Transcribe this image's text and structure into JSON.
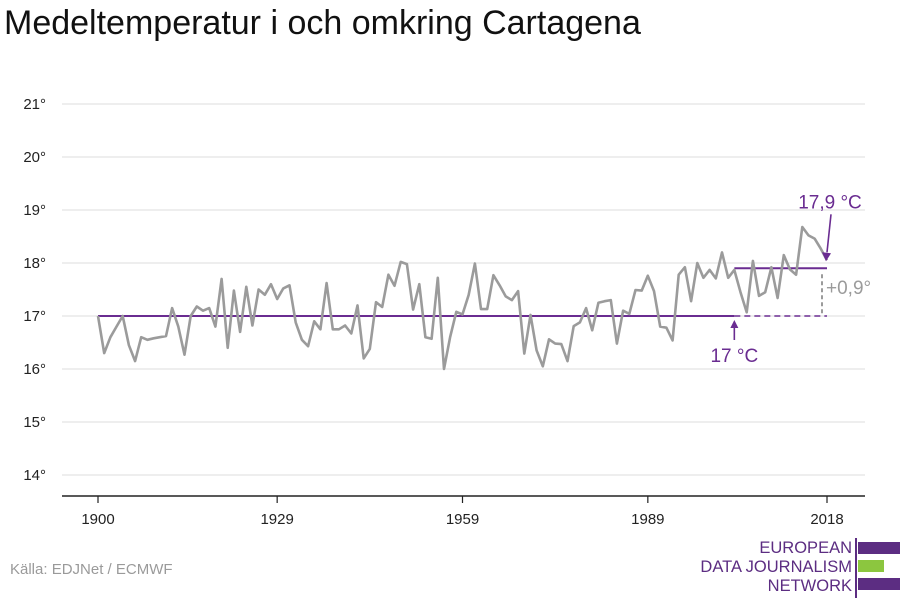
{
  "title": "Medeltemperatur i och omkring Cartagena",
  "source": "Källa: EDJNet / ECMWF",
  "logo": {
    "lines": [
      "EUROPEAN",
      "DATA JOURNALISM",
      "NETWORK"
    ],
    "colors": {
      "purple": "#5c2d82",
      "green": "#8cc63f"
    }
  },
  "colors": {
    "series": "#9b9b9b",
    "accent": "#6a2c91",
    "diff": "#9b9b9b",
    "grid": "#dddddd",
    "axis": "#222222"
  },
  "chart_data": {
    "type": "line",
    "title": "Medeltemperatur i och omkring Cartagena",
    "xlabel": "",
    "ylabel": "",
    "xlim": [
      1900,
      2018
    ],
    "ylim": [
      14,
      21
    ],
    "xticks": [
      1900,
      1929,
      1959,
      1989,
      2018
    ],
    "xtick_labels": [
      "1900",
      "1929",
      "1959",
      "1989",
      "2018"
    ],
    "yticks": [
      14,
      15,
      16,
      17,
      18,
      19,
      20,
      21
    ],
    "ytick_labels": [
      "14°",
      "15°",
      "16°",
      "17°",
      "18°",
      "19°",
      "20°",
      "21°"
    ],
    "grid": true,
    "series": [
      {
        "x": [
          1900,
          1901,
          1902,
          1903,
          1904,
          1905,
          1906,
          1907,
          1908,
          1909,
          1910,
          1911,
          1912,
          1913,
          1914,
          1915,
          1916,
          1917,
          1918,
          1919,
          1920,
          1921,
          1922,
          1923,
          1924,
          1925,
          1926,
          1927,
          1928,
          1929,
          1930,
          1931,
          1932,
          1933,
          1934,
          1935,
          1936,
          1937,
          1938,
          1939,
          1940,
          1941,
          1942,
          1943,
          1944,
          1945,
          1946,
          1947,
          1948,
          1949,
          1950,
          1951,
          1952,
          1953,
          1954,
          1955,
          1956,
          1957,
          1958,
          1959,
          1960,
          1961,
          1962,
          1963,
          1964,
          1965,
          1966,
          1967,
          1968,
          1969,
          1970,
          1971,
          1972,
          1973,
          1974,
          1975,
          1976,
          1977,
          1978,
          1979,
          1980,
          1981,
          1982,
          1983,
          1984,
          1985,
          1986,
          1987,
          1988,
          1989,
          1990,
          1991,
          1992,
          1993,
          1994,
          1995,
          1996,
          1997,
          1998,
          1999,
          2000,
          2001,
          2002,
          2003,
          2004,
          2005,
          2006,
          2007,
          2008,
          2009,
          2010,
          2011,
          2012,
          2013,
          2014,
          2015,
          2016,
          2017,
          2018
        ],
        "values": [
          17.0,
          16.3,
          16.6,
          16.8,
          17.0,
          16.45,
          16.15,
          16.6,
          16.55,
          16.58,
          16.6,
          16.62,
          17.15,
          16.8,
          16.27,
          17.0,
          17.18,
          17.1,
          17.15,
          16.8,
          17.7,
          16.4,
          17.48,
          16.7,
          17.55,
          16.82,
          17.5,
          17.4,
          17.6,
          17.32,
          17.52,
          17.58,
          16.88,
          16.55,
          16.43,
          16.9,
          16.75,
          17.62,
          16.75,
          16.75,
          16.82,
          16.67,
          17.2,
          16.2,
          16.38,
          17.26,
          17.17,
          17.78,
          17.57,
          18.02,
          17.98,
          17.12,
          17.6,
          16.6,
          16.57,
          17.72,
          16.0,
          16.6,
          17.08,
          17.03,
          17.4,
          17.99,
          17.13,
          17.13,
          17.77,
          17.58,
          17.37,
          17.3,
          17.47,
          16.29,
          17.02,
          16.35,
          16.05,
          16.56,
          16.48,
          16.47,
          16.15,
          16.81,
          16.88,
          17.15,
          16.73,
          17.25,
          17.28,
          17.3,
          16.48,
          17.1,
          17.04,
          17.49,
          17.48,
          17.76,
          17.47,
          16.8,
          16.78,
          16.54,
          17.78,
          17.92,
          17.28,
          18.0,
          17.72,
          17.87,
          17.71,
          18.2,
          17.72,
          17.87,
          17.45,
          17.07,
          18.04,
          17.38,
          17.45,
          17.92,
          17.34,
          18.15,
          17.88,
          17.78,
          18.68,
          18.52,
          18.46,
          18.27,
          18.05
        ]
      }
    ],
    "annotations": {
      "baseline": {
        "label": "17 °C",
        "value": 17.0,
        "x_start": 1900,
        "x_end": 2003
      },
      "recent": {
        "label": "17,9 °C",
        "value": 17.9,
        "x_start": 2003,
        "x_end": 2018
      },
      "difference": {
        "label": "+0,9°"
      }
    }
  }
}
